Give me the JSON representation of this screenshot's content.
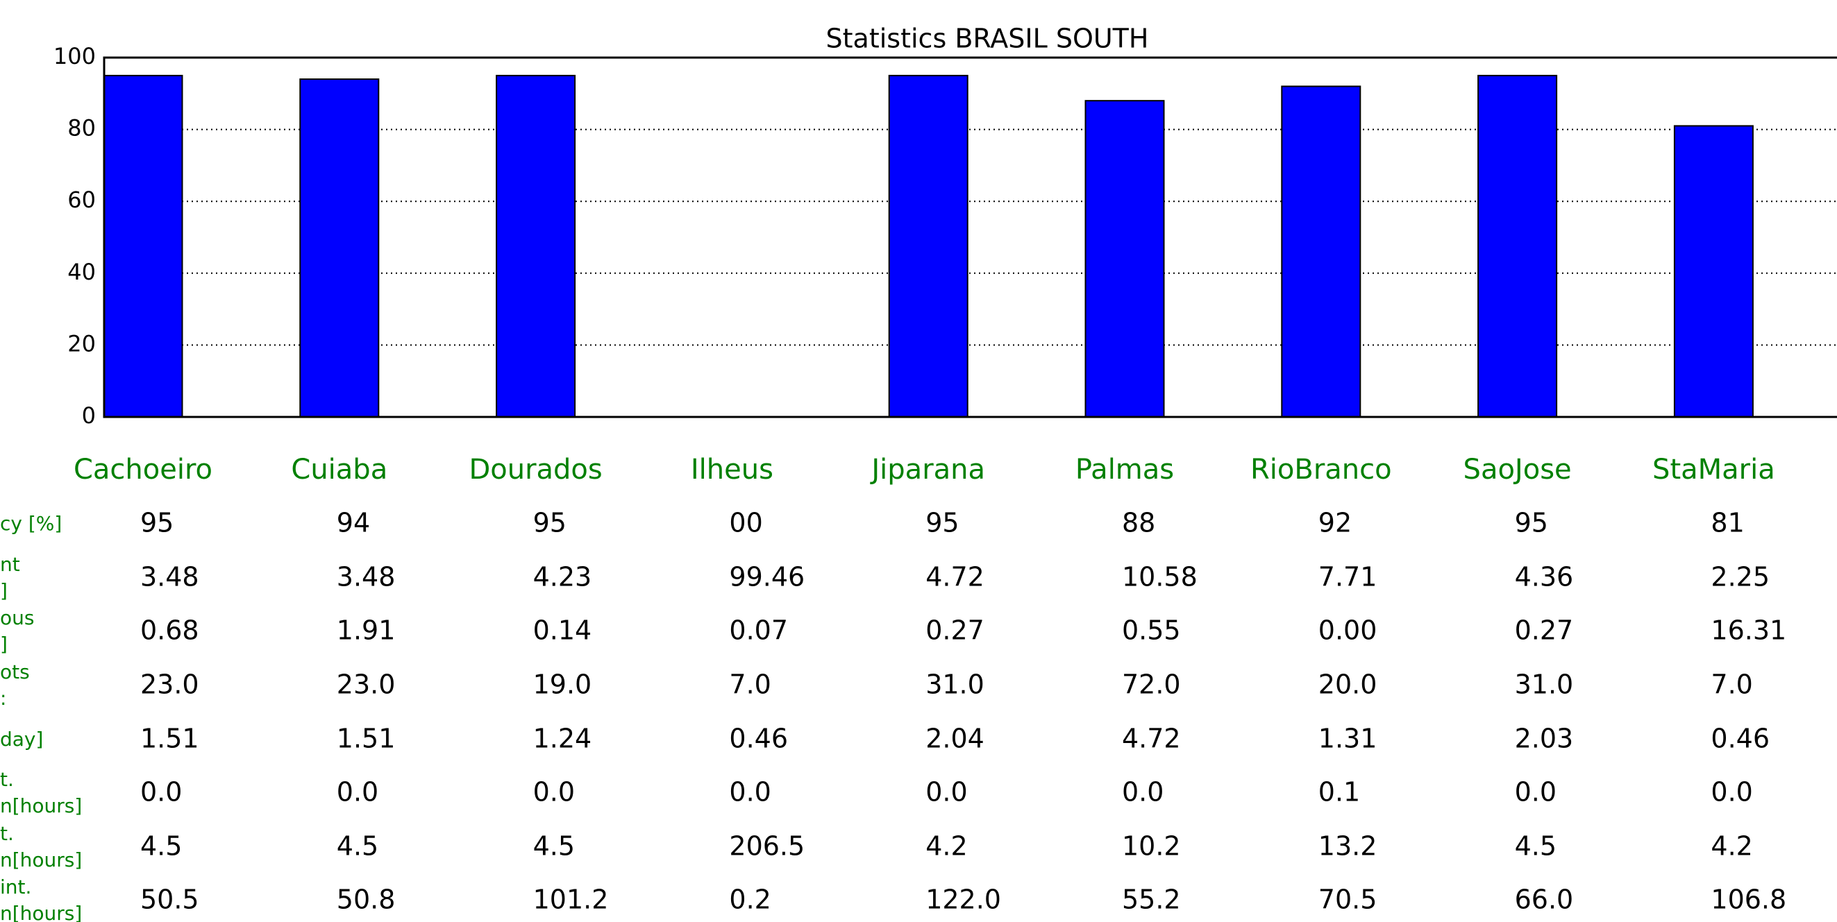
{
  "chart_data": {
    "type": "bar",
    "title": "Statistics BRASIL SOUTH",
    "categories": [
      "Cachoeiro",
      "Cuiaba",
      "Dourados",
      "Ilheus",
      "Jiparana",
      "Palmas",
      "RioBranco",
      "SaoJose",
      "StaMaria"
    ],
    "values": [
      95,
      94,
      95,
      0,
      95,
      88,
      92,
      95,
      81
    ],
    "color": "#0000ff",
    "ylim": [
      0,
      100
    ],
    "yticks": [
      0,
      20,
      40,
      60,
      80,
      100
    ],
    "grid": true
  },
  "table": {
    "rows": [
      {
        "label": [
          "cy [%]"
        ],
        "cells": [
          "95",
          "94",
          "95",
          "00",
          "95",
          "88",
          "92",
          "95",
          "81"
        ]
      },
      {
        "label": [
          "nt",
          "]"
        ],
        "cells": [
          "3.48",
          "3.48",
          "4.23",
          "99.46",
          "4.72",
          "10.58",
          "7.71",
          "4.36",
          "2.25"
        ]
      },
      {
        "label": [
          "ous",
          "]"
        ],
        "cells": [
          "0.68",
          "1.91",
          "0.14",
          "0.07",
          "0.27",
          "0.55",
          "0.00",
          "0.27",
          "16.31"
        ]
      },
      {
        "label": [
          "ots",
          ":"
        ],
        "cells": [
          "23.0",
          "23.0",
          "19.0",
          "7.0",
          "31.0",
          "72.0",
          "20.0",
          "31.0",
          "7.0"
        ]
      },
      {
        "label": [
          "day]"
        ],
        "cells": [
          "1.51",
          "1.51",
          "1.24",
          "0.46",
          "2.04",
          "4.72",
          "1.31",
          "2.03",
          "0.46"
        ]
      },
      {
        "label": [
          "t.",
          "n[hours]"
        ],
        "cells": [
          "0.0",
          "0.0",
          "0.0",
          "0.0",
          "0.0",
          "0.0",
          "0.1",
          "0.0",
          "0.0"
        ]
      },
      {
        "label": [
          "t.",
          "n[hours]"
        ],
        "cells": [
          "4.5",
          "4.5",
          "4.5",
          "206.5",
          "4.2",
          "10.2",
          "13.2",
          "4.5",
          "4.2"
        ]
      },
      {
        "label": [
          "int.",
          "n[hours]"
        ],
        "cells": [
          "50.5",
          "50.8",
          "101.2",
          "0.2",
          "122.0",
          "55.2",
          "70.5",
          "66.0",
          "106.8"
        ]
      }
    ]
  }
}
